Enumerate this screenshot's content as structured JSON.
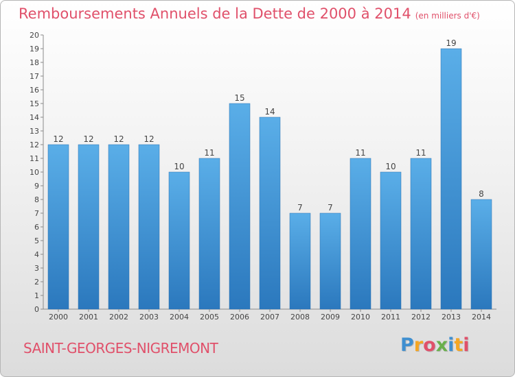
{
  "header": {
    "title": "Remboursements Annuels de la Dette de 2000 à 2014",
    "unit": "(en milliers d'€)"
  },
  "commune": "SAINT-GEORGES-NIGREMONT",
  "logo": {
    "text": "Proxiti",
    "letters": [
      "P",
      "r",
      "o",
      "x",
      "i",
      "t",
      "i"
    ],
    "colors": [
      "#3f8fd0",
      "#f5a623",
      "#e0506a",
      "#6ab04c",
      "#3f8fd0",
      "#f5a623",
      "#e0506a"
    ]
  },
  "chart_data": {
    "type": "bar",
    "title": "Remboursements Annuels de la Dette de 2000 à 2014",
    "categories": [
      "2000",
      "2001",
      "2002",
      "2003",
      "2004",
      "2005",
      "2006",
      "2007",
      "2008",
      "2009",
      "2010",
      "2011",
      "2012",
      "2013",
      "2014"
    ],
    "values": [
      12,
      12,
      12,
      12,
      10,
      11,
      15,
      14,
      7,
      7,
      11,
      10,
      11,
      19,
      8
    ],
    "ylim": [
      0,
      20
    ],
    "yticks": [
      "0",
      "1",
      "2",
      "3",
      "4",
      "5",
      "6",
      "7",
      "8",
      "9",
      "10",
      "11",
      "12",
      "13",
      "14",
      "15",
      "16",
      "17",
      "18",
      "19",
      "20"
    ],
    "grid": false,
    "bar_color_top": "#5aaee8",
    "bar_color_bottom": "#2b78bd"
  }
}
